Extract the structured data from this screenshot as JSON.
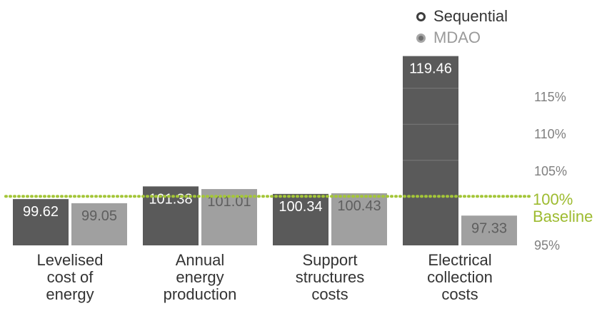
{
  "chart_data": {
    "type": "bar",
    "categories": [
      [
        "Levelised",
        "cost of",
        "energy"
      ],
      [
        "Annual",
        "energy",
        "production"
      ],
      [
        "Support",
        "structures",
        "costs"
      ],
      [
        "Electrical",
        "collection",
        "costs"
      ]
    ],
    "series": [
      {
        "name": "Sequential",
        "values": [
          99.62,
          101.38,
          100.34,
          119.46
        ],
        "labels": [
          "99.62",
          "101.38",
          "100.34",
          "119.46"
        ],
        "color": "#5a5a5a"
      },
      {
        "name": "MDAO",
        "values": [
          99.05,
          101.01,
          100.43,
          97.33
        ],
        "labels": [
          "99.05",
          "101.01",
          "100.43",
          "97.33"
        ],
        "color": "#a0a0a0"
      }
    ],
    "y_ticks": [
      "95%",
      "100%",
      "105%",
      "110%",
      "115%"
    ],
    "baseline": {
      "value": 100,
      "label_top": "100%",
      "label_bottom": "Baseline",
      "color": "#a4c639"
    },
    "ylim": [
      93.2,
      121.5
    ],
    "grid": false,
    "legend_position": "top-right"
  }
}
